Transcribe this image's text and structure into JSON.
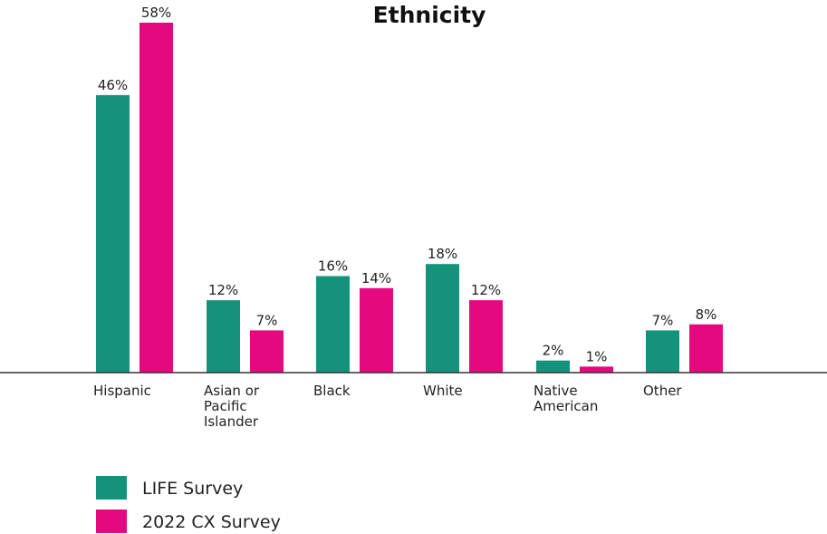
{
  "chart_data": {
    "type": "bar",
    "title": "Ethnicity",
    "categories": [
      [
        "Hispanic"
      ],
      [
        "Asian or",
        "Pacific",
        "Islander"
      ],
      [
        "Black"
      ],
      [
        "White"
      ],
      [
        "Native",
        "American"
      ],
      [
        "Other"
      ]
    ],
    "series": [
      {
        "name": "LIFE Survey",
        "color": "#14937a",
        "values": [
          46,
          12,
          16,
          18,
          2,
          7
        ],
        "labels": [
          "46%",
          "12%",
          "16%",
          "18%",
          "2%",
          "7%"
        ]
      },
      {
        "name": "2022 CX Survey",
        "color": "#e5097f",
        "values": [
          58,
          7,
          14,
          12,
          1,
          8
        ],
        "labels": [
          "58%",
          "7%",
          "14%",
          "12%",
          "1%",
          "8%"
        ]
      }
    ],
    "xlabel": "",
    "ylabel": "",
    "ylim": [
      0,
      58
    ],
    "grid": false,
    "legend": "bottom-left"
  }
}
